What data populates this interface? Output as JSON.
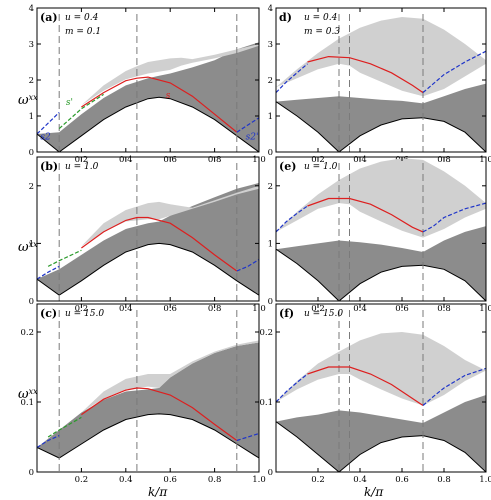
{
  "axes": {
    "ylabel_main": "ω",
    "ylabel_sup": "xx",
    "xlabel_main": "k",
    "xlabel_den": "π"
  },
  "colors": {
    "dark_band": "#8c8c8c",
    "light_band": "#d0d0d0",
    "red": "#dd1f1f",
    "blue": "#1f35c9",
    "green": "#2a9a2a",
    "dash": "#7a7a7a"
  },
  "chart_data": [
    {
      "type": "area",
      "panel": "(a)",
      "params": [
        "u = 0.4",
        "m = 0.1"
      ],
      "xlim": [
        0,
        1
      ],
      "ylim": [
        0,
        4
      ],
      "xticks": [
        "0.2",
        "0.4",
        "0.6",
        "0.8",
        "1.0"
      ],
      "yticks": [
        "0",
        "1",
        "2",
        "3",
        "4"
      ],
      "vlines": [
        0.1,
        0.45,
        0.9
      ],
      "annotations": [
        "s",
        "s'",
        "s2",
        "s2'"
      ],
      "series": [
        {
          "name": "continuum-1",
          "x": [
            0.0,
            0.1,
            0.2,
            0.3,
            0.4,
            0.5,
            0.55,
            0.6,
            0.7,
            0.8,
            0.9,
            1.0
          ],
          "low": [
            0.5,
            0.0,
            0.45,
            0.9,
            1.25,
            1.48,
            1.52,
            1.48,
            1.25,
            0.9,
            0.45,
            0.0
          ],
          "high": [
            0.5,
            0.55,
            1.05,
            1.5,
            1.85,
            2.05,
            2.12,
            2.18,
            2.35,
            2.55,
            2.85,
            3.05
          ]
        },
        {
          "name": "continuum-2",
          "x": [
            0.2,
            0.3,
            0.4,
            0.45,
            0.5,
            0.6,
            0.65,
            0.7,
            0.8,
            0.9,
            1.0
          ],
          "low": [
            1.3,
            1.7,
            2.02,
            2.1,
            2.18,
            2.28,
            2.4,
            2.48,
            2.6,
            2.75,
            2.95
          ],
          "high": [
            1.3,
            1.85,
            2.25,
            2.38,
            2.5,
            2.6,
            2.62,
            2.58,
            2.7,
            2.85,
            3.0
          ]
        },
        {
          "name": "s",
          "x": [
            0.2,
            0.3,
            0.4,
            0.45,
            0.5,
            0.6,
            0.7,
            0.8,
            0.9
          ],
          "y": [
            1.25,
            1.65,
            1.98,
            2.05,
            2.08,
            1.92,
            1.55,
            1.05,
            0.55
          ]
        },
        {
          "name": "s'",
          "x": [
            0.1,
            0.2,
            0.3
          ],
          "y": [
            0.65,
            1.2,
            1.6
          ]
        },
        {
          "name": "s2",
          "x": [
            0.0,
            0.05,
            0.1
          ],
          "y": [
            0.5,
            0.8,
            1.1
          ]
        },
        {
          "name": "s2'",
          "x": [
            0.9,
            0.95,
            1.0
          ],
          "y": [
            0.55,
            0.75,
            0.95
          ]
        }
      ]
    },
    {
      "type": "area",
      "panel": "(b)",
      "params": [
        "u = 1.0"
      ],
      "xlim": [
        0,
        1
      ],
      "ylim": [
        0,
        2.5
      ],
      "xticks": [
        "0.2",
        "0.4",
        "0.6",
        "0.8",
        "1.0"
      ],
      "yticks": [
        "0",
        "1",
        "2"
      ],
      "vlines": [
        0.1,
        0.45,
        0.9
      ],
      "annotations": [],
      "series": [
        {
          "name": "continuum-1",
          "x": [
            0.0,
            0.1,
            0.2,
            0.3,
            0.4,
            0.5,
            0.55,
            0.6,
            0.7,
            0.8,
            0.9,
            1.0
          ],
          "low": [
            0.38,
            0.1,
            0.35,
            0.62,
            0.85,
            0.98,
            1.0,
            0.98,
            0.85,
            0.62,
            0.35,
            0.1
          ],
          "high": [
            0.38,
            0.55,
            0.8,
            1.05,
            1.25,
            1.35,
            1.38,
            1.48,
            1.65,
            1.8,
            1.95,
            2.05
          ]
        },
        {
          "name": "continuum-2",
          "x": [
            0.2,
            0.3,
            0.4,
            0.5,
            0.55,
            0.6,
            0.7,
            0.8,
            0.9,
            1.0
          ],
          "low": [
            0.95,
            1.2,
            1.38,
            1.42,
            1.42,
            1.48,
            1.6,
            1.72,
            1.85,
            1.95
          ],
          "high": [
            0.95,
            1.35,
            1.58,
            1.7,
            1.72,
            1.68,
            1.62,
            1.75,
            1.88,
            2.0
          ]
        },
        {
          "name": "s",
          "x": [
            0.2,
            0.3,
            0.4,
            0.45,
            0.5,
            0.6,
            0.7,
            0.8,
            0.9
          ],
          "y": [
            0.92,
            1.2,
            1.4,
            1.45,
            1.45,
            1.35,
            1.1,
            0.8,
            0.52
          ]
        },
        {
          "name": "s'",
          "x": [
            0.05,
            0.1,
            0.2
          ],
          "y": [
            0.6,
            0.7,
            0.88
          ]
        },
        {
          "name": "s2",
          "x": [
            0.0,
            0.05,
            0.1
          ],
          "y": [
            0.38,
            0.5,
            0.6
          ]
        },
        {
          "name": "s2'",
          "x": [
            0.9,
            0.95,
            1.0
          ],
          "y": [
            0.52,
            0.6,
            0.72
          ]
        }
      ]
    },
    {
      "type": "area",
      "panel": "(c)",
      "params": [
        "u = 15.0"
      ],
      "xlim": [
        0,
        1
      ],
      "ylim": [
        0,
        0.24
      ],
      "xticks": [
        "0.2",
        "0.4",
        "0.6",
        "0.8",
        "1.0"
      ],
      "yticks": [
        "0",
        "0.1",
        "0.2"
      ],
      "vlines": [
        0.1,
        0.45,
        0.9
      ],
      "annotations": [],
      "series": [
        {
          "name": "continuum-1",
          "x": [
            0.0,
            0.1,
            0.2,
            0.3,
            0.4,
            0.5,
            0.55,
            0.6,
            0.7,
            0.8,
            0.9,
            1.0
          ],
          "low": [
            0.035,
            0.02,
            0.04,
            0.06,
            0.075,
            0.082,
            0.083,
            0.082,
            0.075,
            0.06,
            0.04,
            0.02
          ],
          "high": [
            0.035,
            0.06,
            0.085,
            0.103,
            0.115,
            0.118,
            0.12,
            0.135,
            0.155,
            0.17,
            0.18,
            0.185
          ]
        },
        {
          "name": "continuum-2",
          "x": [
            0.2,
            0.3,
            0.4,
            0.5,
            0.55,
            0.6,
            0.7,
            0.8,
            0.9,
            1.0
          ],
          "low": [
            0.085,
            0.105,
            0.118,
            0.122,
            0.12,
            0.135,
            0.155,
            0.17,
            0.18,
            0.185
          ],
          "high": [
            0.085,
            0.115,
            0.133,
            0.14,
            0.14,
            0.14,
            0.158,
            0.172,
            0.182,
            0.188
          ]
        },
        {
          "name": "s",
          "x": [
            0.2,
            0.3,
            0.4,
            0.45,
            0.5,
            0.6,
            0.7,
            0.8,
            0.9
          ],
          "y": [
            0.082,
            0.104,
            0.117,
            0.12,
            0.119,
            0.11,
            0.092,
            0.068,
            0.045
          ]
        },
        {
          "name": "s'",
          "x": [
            0.05,
            0.1,
            0.2
          ],
          "y": [
            0.05,
            0.06,
            0.078
          ]
        },
        {
          "name": "s2",
          "x": [
            0.0,
            0.05,
            0.1
          ],
          "y": [
            0.035,
            0.045,
            0.052
          ]
        },
        {
          "name": "s2'",
          "x": [
            0.9,
            0.95,
            1.0
          ],
          "y": [
            0.045,
            0.05,
            0.055
          ]
        }
      ]
    },
    {
      "type": "area",
      "panel": "d)",
      "params": [
        "u = 0.4",
        "m = 0.3"
      ],
      "xlim": [
        0,
        1
      ],
      "ylim": [
        0,
        4
      ],
      "xticks": [
        "0.2",
        "0.4",
        "0.6",
        "0.8",
        "1.0"
      ],
      "yticks": [
        "0",
        "1",
        "2",
        "3",
        "4"
      ],
      "vlines": [
        0.3,
        0.35,
        0.7
      ],
      "annotations": [],
      "series": [
        {
          "name": "continuum-1",
          "x": [
            0.0,
            0.1,
            0.2,
            0.3,
            0.4,
            0.5,
            0.6,
            0.7,
            0.8,
            0.9,
            1.0
          ],
          "low": [
            1.4,
            1.0,
            0.55,
            0.0,
            0.45,
            0.75,
            0.92,
            0.95,
            0.85,
            0.55,
            0.0
          ],
          "high": [
            1.4,
            1.45,
            1.5,
            1.55,
            1.5,
            1.45,
            1.42,
            1.35,
            1.55,
            1.75,
            1.9
          ]
        },
        {
          "name": "continuum-2",
          "x": [
            0.0,
            0.1,
            0.2,
            0.3,
            0.35,
            0.4,
            0.5,
            0.6,
            0.7,
            0.8,
            0.9,
            1.0
          ],
          "low": [
            1.8,
            2.05,
            2.3,
            2.45,
            2.4,
            2.2,
            1.95,
            1.7,
            1.55,
            1.75,
            2.1,
            2.45
          ],
          "high": [
            1.8,
            2.3,
            2.75,
            3.15,
            3.3,
            3.45,
            3.65,
            3.75,
            3.7,
            3.4,
            3.0,
            2.55
          ]
        },
        {
          "name": "s",
          "x": [
            0.15,
            0.25,
            0.35,
            0.45,
            0.55,
            0.65,
            0.7
          ],
          "y": [
            2.5,
            2.65,
            2.62,
            2.45,
            2.2,
            1.85,
            1.65
          ]
        },
        {
          "name": "s2",
          "x": [
            0.0,
            0.05,
            0.1,
            0.15
          ],
          "y": [
            1.65,
            1.95,
            2.2,
            2.45
          ]
        },
        {
          "name": "s2'",
          "x": [
            0.7,
            0.75,
            0.8,
            0.9,
            1.0
          ],
          "y": [
            1.65,
            1.9,
            2.15,
            2.5,
            2.8
          ]
        }
      ]
    },
    {
      "type": "area",
      "panel": "(e)",
      "params": [
        "u = 1.0"
      ],
      "xlim": [
        0,
        1
      ],
      "ylim": [
        0,
        2.5
      ],
      "xticks": [
        "0.2",
        "0.4",
        "0.6",
        "0.8",
        "1.0"
      ],
      "yticks": [
        "0",
        "1",
        "2"
      ],
      "vlines": [
        0.3,
        0.35,
        0.7
      ],
      "annotations": [],
      "series": [
        {
          "name": "continuum-1",
          "x": [
            0.0,
            0.1,
            0.2,
            0.3,
            0.4,
            0.5,
            0.6,
            0.7,
            0.8,
            0.9,
            1.0
          ],
          "low": [
            0.9,
            0.65,
            0.35,
            0.0,
            0.3,
            0.5,
            0.6,
            0.62,
            0.55,
            0.35,
            0.0
          ],
          "high": [
            0.9,
            0.95,
            1.0,
            1.05,
            1.02,
            0.98,
            0.92,
            0.85,
            1.05,
            1.2,
            1.3
          ]
        },
        {
          "name": "continuum-2",
          "x": [
            0.0,
            0.1,
            0.2,
            0.3,
            0.35,
            0.4,
            0.5,
            0.6,
            0.7,
            0.8,
            0.9,
            1.0
          ],
          "low": [
            1.2,
            1.4,
            1.6,
            1.7,
            1.68,
            1.55,
            1.38,
            1.22,
            1.1,
            1.25,
            1.45,
            1.6
          ],
          "high": [
            1.2,
            1.55,
            1.85,
            2.1,
            2.2,
            2.3,
            2.42,
            2.48,
            2.45,
            2.25,
            2.0,
            1.7
          ]
        },
        {
          "name": "s",
          "x": [
            0.15,
            0.25,
            0.35,
            0.45,
            0.55,
            0.65,
            0.7
          ],
          "y": [
            1.65,
            1.78,
            1.78,
            1.68,
            1.5,
            1.28,
            1.2
          ]
        },
        {
          "name": "s2",
          "x": [
            0.0,
            0.05,
            0.1,
            0.15
          ],
          "y": [
            1.2,
            1.38,
            1.52,
            1.65
          ]
        },
        {
          "name": "s2'",
          "x": [
            0.7,
            0.75,
            0.8,
            0.9,
            1.0
          ],
          "y": [
            1.2,
            1.3,
            1.45,
            1.6,
            1.7
          ]
        }
      ]
    },
    {
      "type": "area",
      "panel": "(f)",
      "params": [
        "u = 15.0"
      ],
      "xlim": [
        0,
        1
      ],
      "ylim": [
        0,
        0.24
      ],
      "xticks": [
        "0.2",
        "0.4",
        "0.6",
        "0.8",
        "1.0"
      ],
      "yticks": [
        "0",
        "0.1",
        "0.2"
      ],
      "vlines": [
        0.3,
        0.35,
        0.7
      ],
      "annotations": [],
      "series": [
        {
          "name": "continuum-1",
          "x": [
            0.0,
            0.1,
            0.2,
            0.3,
            0.4,
            0.5,
            0.6,
            0.7,
            0.8,
            0.9,
            1.0
          ],
          "low": [
            0.072,
            0.05,
            0.025,
            0.0,
            0.025,
            0.042,
            0.05,
            0.052,
            0.045,
            0.028,
            0.0
          ],
          "high": [
            0.072,
            0.078,
            0.082,
            0.088,
            0.085,
            0.08,
            0.075,
            0.07,
            0.085,
            0.1,
            0.11
          ]
        },
        {
          "name": "continuum-2",
          "x": [
            0.0,
            0.1,
            0.2,
            0.3,
            0.35,
            0.4,
            0.5,
            0.6,
            0.7,
            0.8,
            0.9,
            1.0
          ],
          "low": [
            0.1,
            0.118,
            0.132,
            0.14,
            0.14,
            0.132,
            0.118,
            0.105,
            0.095,
            0.11,
            0.13,
            0.145
          ],
          "high": [
            0.1,
            0.13,
            0.155,
            0.172,
            0.18,
            0.188,
            0.198,
            0.2,
            0.196,
            0.18,
            0.16,
            0.145
          ]
        },
        {
          "name": "s",
          "x": [
            0.15,
            0.25,
            0.35,
            0.45,
            0.55,
            0.65,
            0.7
          ],
          "y": [
            0.14,
            0.15,
            0.15,
            0.14,
            0.125,
            0.105,
            0.095
          ]
        },
        {
          "name": "s2",
          "x": [
            0.0,
            0.05,
            0.1,
            0.15
          ],
          "y": [
            0.1,
            0.115,
            0.128,
            0.14
          ]
        },
        {
          "name": "s2'",
          "x": [
            0.7,
            0.75,
            0.8,
            0.9,
            1.0
          ],
          "y": [
            0.095,
            0.108,
            0.12,
            0.138,
            0.148
          ]
        }
      ]
    }
  ]
}
